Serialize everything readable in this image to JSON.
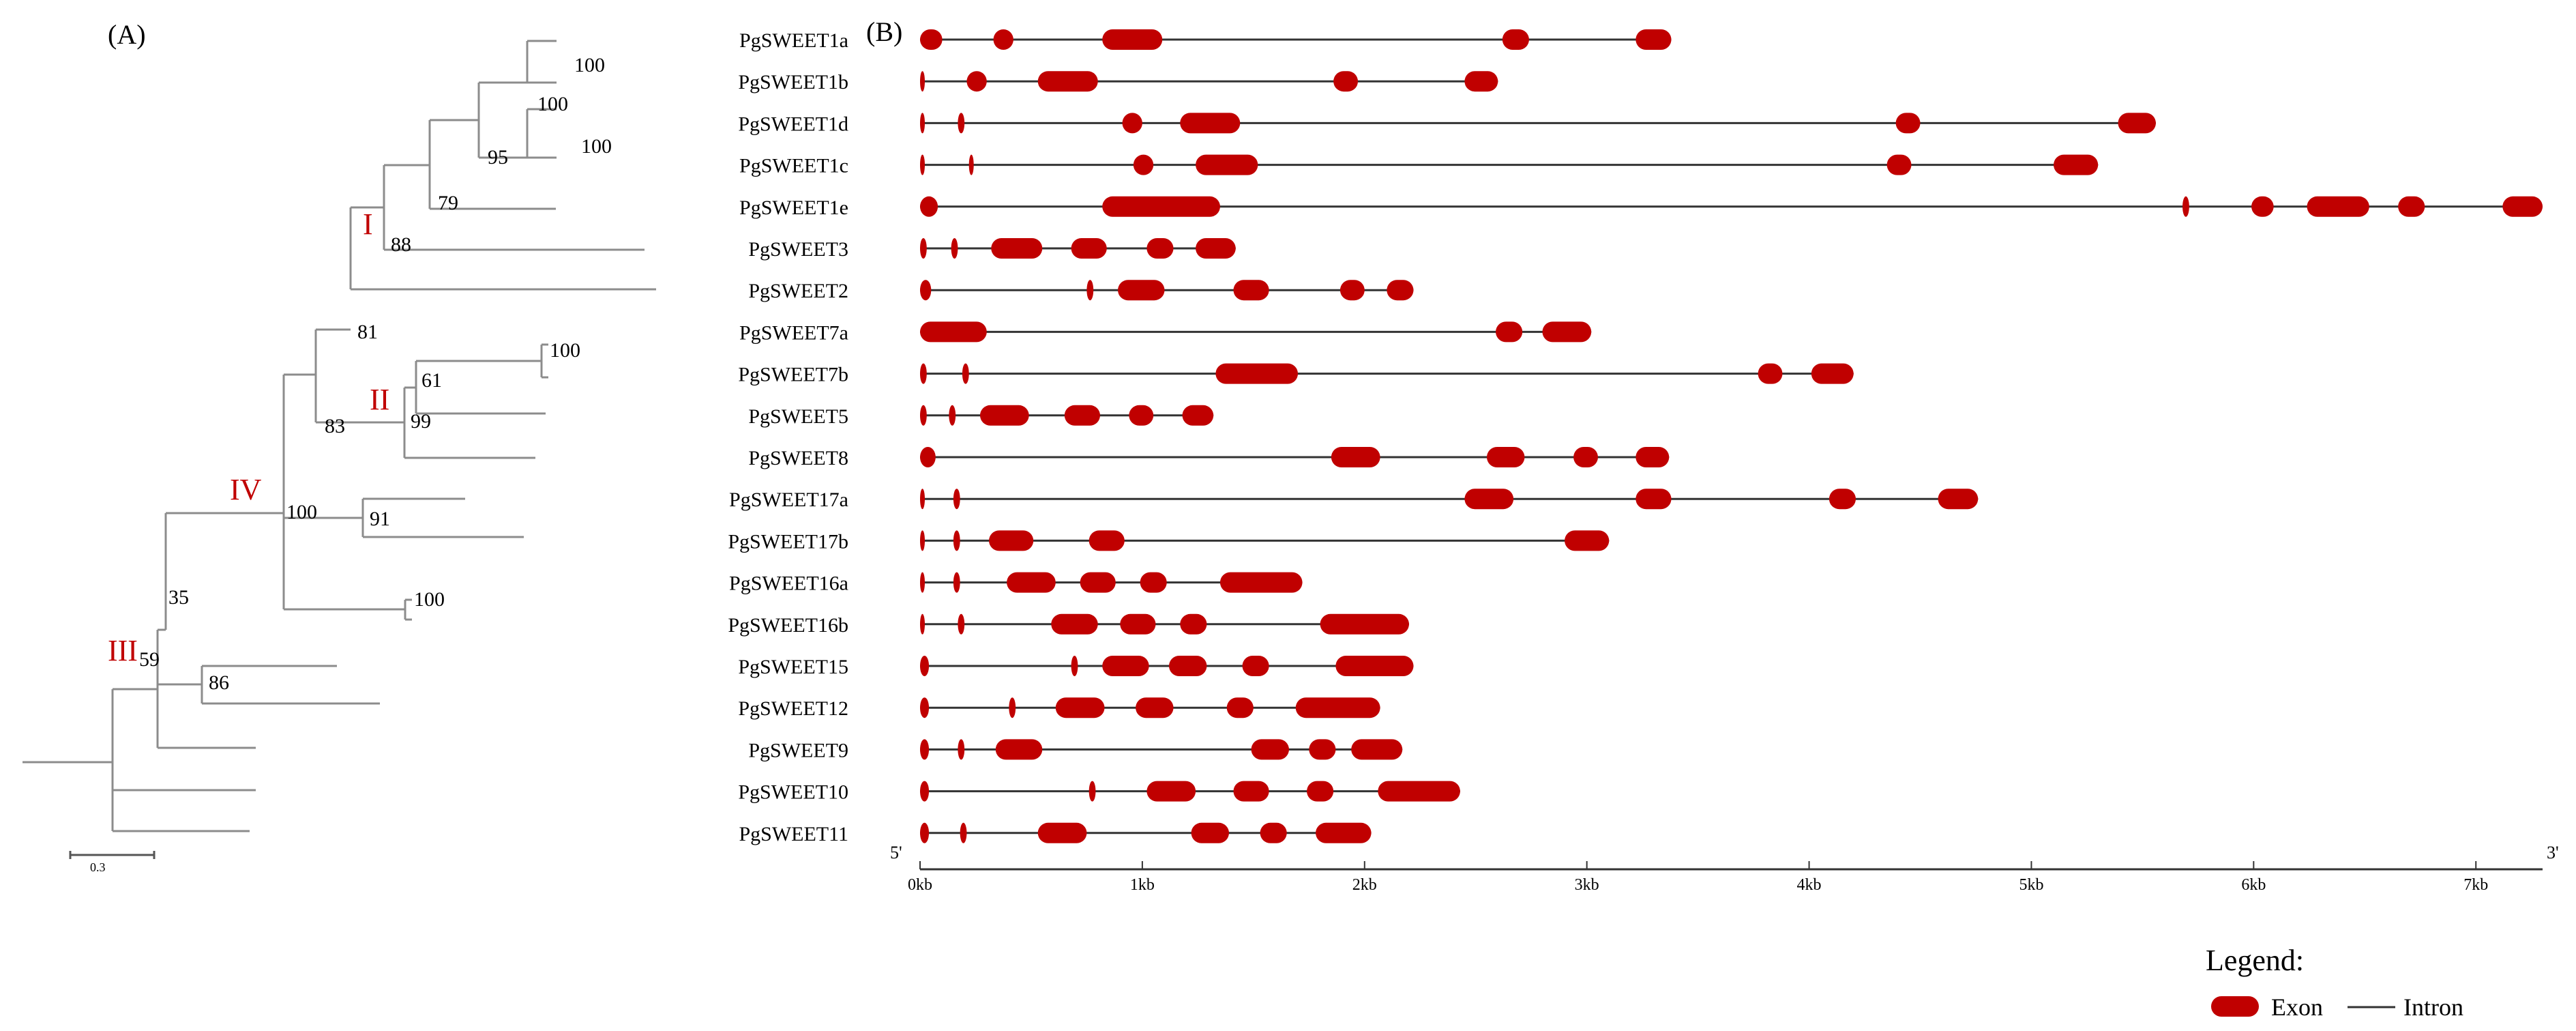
{
  "panel_a": {
    "label": "(A)",
    "scale_label": "0.3",
    "clade_labels": [
      "I",
      "II",
      "III",
      "IV"
    ],
    "bootstrap": [
      "100",
      "100",
      "100",
      "95",
      "79",
      "88",
      "81",
      "100",
      "61",
      "99",
      "83",
      "100",
      "91",
      "100",
      "35",
      "59",
      "86"
    ]
  },
  "panel_b": {
    "label": "(B)",
    "end5": "5'",
    "end3": "3'",
    "axis_ticks": [
      "0kb",
      "1kb",
      "2kb",
      "3kb",
      "4kb",
      "5kb",
      "6kb",
      "7kb"
    ],
    "axis_max_kb": 7.3,
    "genes": [
      {
        "name": "PgSWEET1a",
        "length": 3.38,
        "exons": [
          [
            0.0,
            0.1
          ],
          [
            0.33,
            0.42
          ],
          [
            0.82,
            1.09
          ],
          [
            2.62,
            2.74
          ],
          [
            3.22,
            3.38
          ]
        ]
      },
      {
        "name": "PgSWEET1b",
        "length": 2.6,
        "exons": [
          [
            0.0,
            0.02
          ],
          [
            0.21,
            0.3
          ],
          [
            0.53,
            0.8
          ],
          [
            1.86,
            1.97
          ],
          [
            2.45,
            2.6
          ]
        ]
      },
      {
        "name": "PgSWEET1d",
        "length": 5.56,
        "exons": [
          [
            0.0,
            0.02
          ],
          [
            0.17,
            0.2
          ],
          [
            0.91,
            1.0
          ],
          [
            1.17,
            1.44
          ],
          [
            4.39,
            4.5
          ],
          [
            5.39,
            5.56
          ]
        ]
      },
      {
        "name": "PgSWEET1c",
        "length": 5.3,
        "exons": [
          [
            0.0,
            0.02
          ],
          [
            0.22,
            0.24
          ],
          [
            0.96,
            1.05
          ],
          [
            1.24,
            1.52
          ],
          [
            4.35,
            4.46
          ],
          [
            5.1,
            5.3
          ]
        ]
      },
      {
        "name": "PgSWEET1e",
        "length": 7.3,
        "exons": [
          [
            0.0,
            0.08
          ],
          [
            0.82,
            1.35
          ],
          [
            5.68,
            5.71
          ],
          [
            5.99,
            6.09
          ],
          [
            6.24,
            6.52
          ],
          [
            6.65,
            6.77
          ],
          [
            7.12,
            7.3
          ]
        ]
      },
      {
        "name": "PgSWEET3",
        "length": 1.42,
        "exons": [
          [
            0.0,
            0.03
          ],
          [
            0.14,
            0.17
          ],
          [
            0.32,
            0.55
          ],
          [
            0.68,
            0.84
          ],
          [
            1.02,
            1.14
          ],
          [
            1.24,
            1.42
          ]
        ]
      },
      {
        "name": "PgSWEET2",
        "length": 2.22,
        "exons": [
          [
            0.0,
            0.05
          ],
          [
            0.75,
            0.78
          ],
          [
            0.89,
            1.1
          ],
          [
            1.41,
            1.57
          ],
          [
            1.89,
            2.0
          ],
          [
            2.1,
            2.22
          ]
        ]
      },
      {
        "name": "PgSWEET7a",
        "length": 3.02,
        "exons": [
          [
            0.0,
            0.3
          ],
          [
            2.59,
            2.71
          ],
          [
            2.8,
            3.02
          ]
        ]
      },
      {
        "name": "PgSWEET7b",
        "length": 4.2,
        "exons": [
          [
            0.0,
            0.03
          ],
          [
            0.19,
            0.22
          ],
          [
            1.33,
            1.7
          ],
          [
            3.77,
            3.88
          ],
          [
            4.01,
            4.2
          ]
        ]
      },
      {
        "name": "PgSWEET5",
        "length": 1.32,
        "exons": [
          [
            0.0,
            0.03
          ],
          [
            0.13,
            0.16
          ],
          [
            0.27,
            0.49
          ],
          [
            0.65,
            0.81
          ],
          [
            0.94,
            1.05
          ],
          [
            1.18,
            1.32
          ]
        ]
      },
      {
        "name": "PgSWEET8",
        "length": 3.37,
        "exons": [
          [
            0.0,
            0.07
          ],
          [
            1.85,
            2.07
          ],
          [
            2.55,
            2.72
          ],
          [
            2.94,
            3.05
          ],
          [
            3.22,
            3.37
          ]
        ]
      },
      {
        "name": "PgSWEET17a",
        "length": 4.76,
        "exons": [
          [
            0.0,
            0.02
          ],
          [
            0.15,
            0.18
          ],
          [
            2.45,
            2.67
          ],
          [
            3.22,
            3.38
          ],
          [
            4.09,
            4.21
          ],
          [
            4.58,
            4.76
          ]
        ]
      },
      {
        "name": "PgSWEET17b",
        "length": 3.1,
        "exons": [
          [
            0.0,
            0.02
          ],
          [
            0.15,
            0.18
          ],
          [
            0.31,
            0.51
          ],
          [
            0.76,
            0.92
          ],
          [
            2.9,
            3.1
          ]
        ]
      },
      {
        "name": "PgSWEET16a",
        "length": 1.72,
        "exons": [
          [
            0.0,
            0.02
          ],
          [
            0.15,
            0.18
          ],
          [
            0.39,
            0.61
          ],
          [
            0.72,
            0.88
          ],
          [
            0.99,
            1.11
          ],
          [
            1.35,
            1.72
          ]
        ]
      },
      {
        "name": "PgSWEET16b",
        "length": 2.2,
        "exons": [
          [
            0.0,
            0.02
          ],
          [
            0.17,
            0.2
          ],
          [
            0.59,
            0.8
          ],
          [
            0.9,
            1.06
          ],
          [
            1.17,
            1.29
          ],
          [
            1.8,
            2.2
          ]
        ]
      },
      {
        "name": "PgSWEET15",
        "length": 2.22,
        "exons": [
          [
            0.0,
            0.04
          ],
          [
            0.68,
            0.71
          ],
          [
            0.82,
            1.03
          ],
          [
            1.12,
            1.29
          ],
          [
            1.45,
            1.57
          ],
          [
            1.87,
            2.22
          ]
        ]
      },
      {
        "name": "PgSWEET12",
        "length": 2.07,
        "exons": [
          [
            0.0,
            0.04
          ],
          [
            0.4,
            0.43
          ],
          [
            0.61,
            0.83
          ],
          [
            0.97,
            1.14
          ],
          [
            1.38,
            1.5
          ],
          [
            1.69,
            2.07
          ]
        ]
      },
      {
        "name": "PgSWEET9",
        "length": 2.17,
        "exons": [
          [
            0.0,
            0.04
          ],
          [
            0.17,
            0.2
          ],
          [
            0.34,
            0.55
          ],
          [
            1.49,
            1.66
          ],
          [
            1.75,
            1.87
          ],
          [
            1.94,
            2.17
          ]
        ]
      },
      {
        "name": "PgSWEET10",
        "length": 2.43,
        "exons": [
          [
            0.0,
            0.04
          ],
          [
            0.76,
            0.79
          ],
          [
            1.02,
            1.24
          ],
          [
            1.41,
            1.57
          ],
          [
            1.74,
            1.86
          ],
          [
            2.06,
            2.43
          ]
        ]
      },
      {
        "name": "PgSWEET11",
        "length": 2.03,
        "exons": [
          [
            0.0,
            0.04
          ],
          [
            0.18,
            0.21
          ],
          [
            0.53,
            0.75
          ],
          [
            1.22,
            1.39
          ],
          [
            1.53,
            1.65
          ],
          [
            1.78,
            2.03
          ]
        ]
      }
    ],
    "legend": {
      "title": "Legend:",
      "exon_label": "Exon",
      "intron_label": "Intron",
      "exon_color": "#c00000",
      "intron_color": "#333333"
    }
  }
}
